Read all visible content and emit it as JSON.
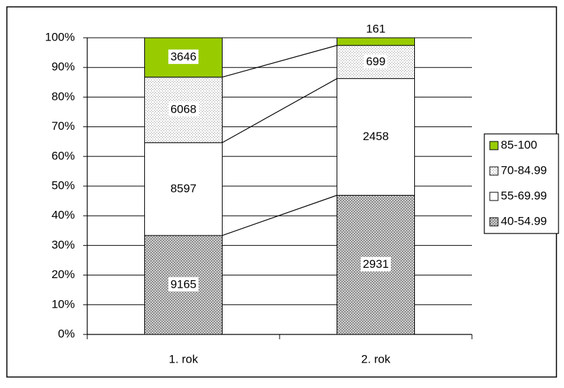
{
  "chart_data": {
    "type": "bar",
    "stacking": "percent",
    "categories": [
      "1. rok",
      "2. rok"
    ],
    "series": [
      {
        "name": "40-54.99",
        "color": "#ffffff",
        "pattern": "crosshatch",
        "values": [
          9165,
          2931
        ]
      },
      {
        "name": "55-69.99",
        "color": "#ffffff",
        "pattern": null,
        "values": [
          8597,
          2458
        ]
      },
      {
        "name": "70-84.99",
        "color": "#ffffff",
        "pattern": "dots",
        "values": [
          6068,
          699
        ]
      },
      {
        "name": "85-100",
        "color": "#99cc00",
        "pattern": null,
        "values": [
          3646,
          161
        ]
      }
    ],
    "ylim": [
      0,
      100
    ],
    "yticks": [
      {
        "value": 0,
        "label": "0%"
      },
      {
        "value": 10,
        "label": "10%"
      },
      {
        "value": 20,
        "label": "20%"
      },
      {
        "value": 30,
        "label": "30%"
      },
      {
        "value": 40,
        "label": "40%"
      },
      {
        "value": 50,
        "label": "50%"
      },
      {
        "value": 60,
        "label": "60%"
      },
      {
        "value": 70,
        "label": "70%"
      },
      {
        "value": 80,
        "label": "80%"
      },
      {
        "value": 90,
        "label": "90%"
      },
      {
        "value": 100,
        "label": "100%"
      }
    ],
    "grid": true,
    "series_lines": true,
    "legend": "right"
  }
}
